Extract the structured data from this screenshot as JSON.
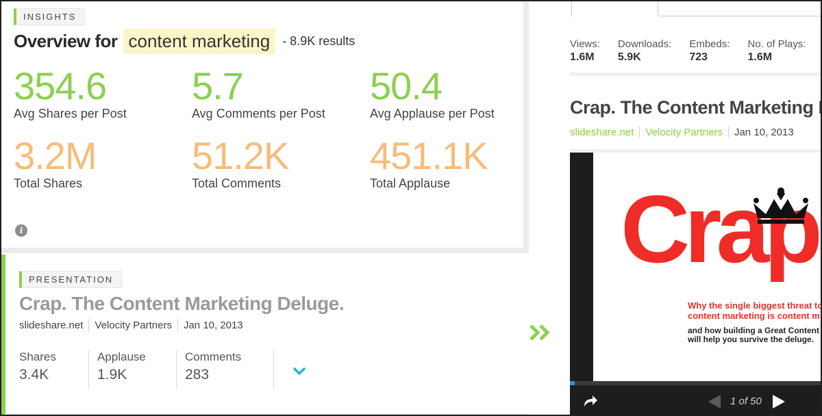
{
  "insights": {
    "tag": "INSIGHTS",
    "overview_label": "Overview for",
    "query": "content marketing",
    "results": "- 8.9K results",
    "stats": [
      {
        "value": "354.6",
        "label": "Avg Shares per Post",
        "color": "#8bd04f"
      },
      {
        "value": "5.7",
        "label": "Avg Comments per Post",
        "color": "#8bd04f"
      },
      {
        "value": "50.4",
        "label": "Avg Applause per Post",
        "color": "#8bd04f"
      },
      {
        "value": "3.2M",
        "label": "Total Shares",
        "color": "#f8bb79"
      },
      {
        "value": "51.2K",
        "label": "Total Comments",
        "color": "#f8bb79"
      },
      {
        "value": "451.1K",
        "label": "Total Applause",
        "color": "#f8bb79"
      }
    ],
    "info_icon": "info-icon"
  },
  "presentation": {
    "tag": "PRESENTATION",
    "title": "Crap. The Content Marketing Deluge.",
    "meta": {
      "source": "slideshare.net",
      "author": "Velocity Partners",
      "date": "Jan 10, 2013"
    },
    "stats": [
      {
        "label": "Shares",
        "value": "3.4K"
      },
      {
        "label": "Applause",
        "value": "1.9K"
      },
      {
        "label": "Comments",
        "value": "283"
      }
    ],
    "expand_icon": "chevron-down-icon",
    "open_icon": "double-chevron-right-icon"
  },
  "detail": {
    "stats": [
      {
        "label": "Views:",
        "value": "1.6M"
      },
      {
        "label": "Downloads:",
        "value": "5.9K"
      },
      {
        "label": "Embeds:",
        "value": "723"
      },
      {
        "label": "No. of Plays:",
        "value": "1.6M"
      }
    ],
    "title": "Crap. The Content Marketing Deluge.",
    "meta": {
      "source": "slideshare.net",
      "author": "Velocity Partners",
      "date": "Jan 10, 2013"
    },
    "slide": {
      "headline": "Crap.",
      "subtitle_1": "Why the single biggest threat to",
      "subtitle_2": "content marketing is content m",
      "subtitle_3": "and how building a Great Content B",
      "subtitle_4": "will help you survive the deluge."
    },
    "player": {
      "pager": "1 of 50",
      "progress": 0.02,
      "accent": "#2f8fd6"
    }
  },
  "colors": {
    "accent_green": "#8bd04f",
    "accent_orange": "#f8bb79",
    "slide_red": "#ef2c27"
  }
}
